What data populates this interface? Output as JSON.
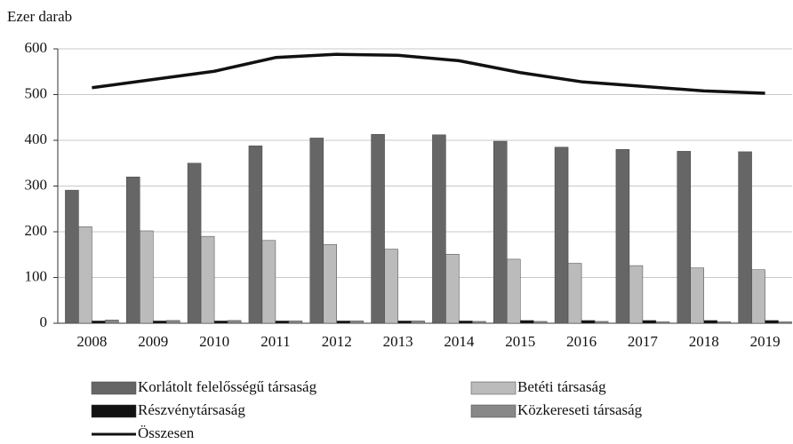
{
  "chart_data": {
    "type": "bar",
    "y_label": "Ezer darab",
    "categories": [
      "2008",
      "2009",
      "2010",
      "2011",
      "2012",
      "2013",
      "2014",
      "2015",
      "2016",
      "2017",
      "2018",
      "2019"
    ],
    "series": [
      {
        "name": "Korlátolt felelősségű társaság",
        "color": "#666666",
        "values": [
          291,
          320,
          350,
          388,
          405,
          413,
          412,
          398,
          385,
          380,
          376,
          375
        ]
      },
      {
        "name": "Betéti társaság",
        "color": "#bbbbbb",
        "values": [
          211,
          202,
          190,
          181,
          172,
          162,
          151,
          140,
          131,
          126,
          121,
          117
        ]
      },
      {
        "name": "Részvénytársaság",
        "color": "#111111",
        "values": [
          5,
          5,
          5,
          5,
          5,
          5,
          5,
          6,
          6,
          6,
          6,
          6
        ]
      },
      {
        "name": "Közkereseti társaság",
        "color": "#888888",
        "values": [
          7,
          6,
          6,
          5,
          5,
          5,
          4,
          4,
          4,
          3,
          3,
          3
        ]
      },
      {
        "name": "Összesen",
        "type": "line",
        "color": "#111111",
        "values": [
          515,
          533,
          551,
          581,
          588,
          586,
          574,
          548,
          528,
          518,
          508,
          503
        ]
      }
    ],
    "ylim": [
      0,
      600
    ],
    "yticks": [
      0,
      100,
      200,
      300,
      400,
      500,
      600
    ],
    "grid": true
  }
}
